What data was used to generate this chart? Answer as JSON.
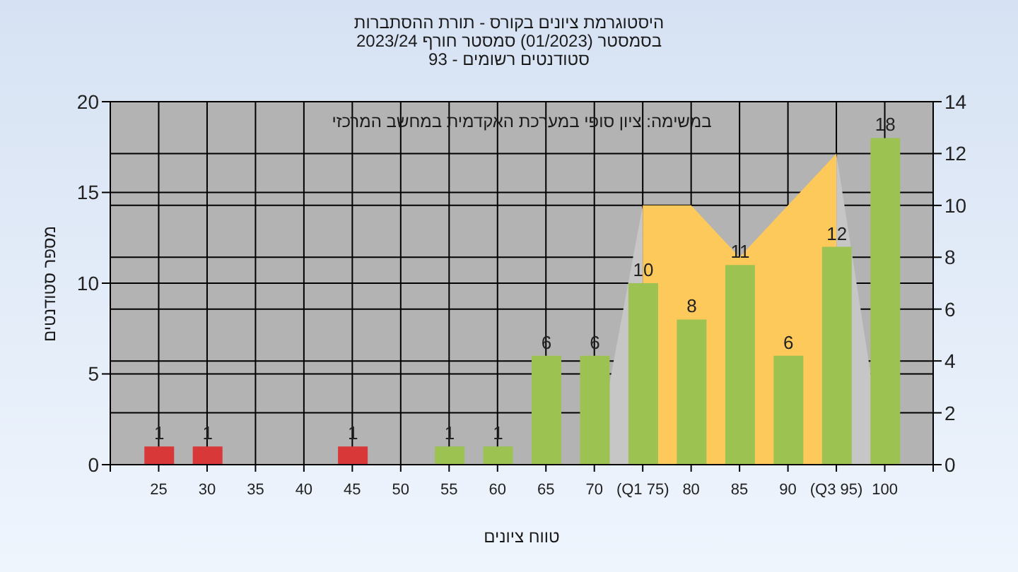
{
  "chart_data": {
    "type": "bar",
    "title": "היסטוגרמת ציונים בקורס - תורת ההסתברות",
    "subtitle": "בסמסטר (01/2023) סמסטר חורף 2023/24\nסטודנטים רשומים - 93",
    "xlabel": "טווח ציונים",
    "ylabel": "מספר סטודנטים",
    "annotations": [
      "במשימה: ציון סופי במערכת האקדמית במחשב המרכזי"
    ],
    "xlim": [
      20,
      105
    ],
    "xticks": [
      {
        "value": 20,
        "label": null
      },
      25,
      30,
      35,
      40,
      45,
      50,
      55,
      60,
      65,
      70,
      {
        "value": 75,
        "label": "(Q1 75)"
      },
      80,
      85,
      90,
      {
        "value": 95,
        "label": "(Q3 95)"
      },
      100,
      {
        "value": 105,
        "label": null
      }
    ],
    "ylim": [
      0,
      20
    ],
    "yticks": [
      0,
      5,
      10,
      15,
      20
    ],
    "y2lim": [
      0,
      14
    ],
    "y2ticks": [
      0,
      2,
      4,
      6,
      8,
      10,
      12,
      14
    ],
    "grid": true,
    "series": [
      {
        "type": "area",
        "axis": "y2",
        "color": "#c6c6c6",
        "x": [
          70,
          75,
          80,
          85,
          90,
          95,
          100
        ],
        "values": [
          0,
          10,
          null,
          null,
          null,
          12,
          0
        ]
      },
      {
        "type": "area",
        "axis": "y2",
        "color": "#fdc95b",
        "x": [
          75,
          80,
          85,
          90,
          95
        ],
        "values": [
          10,
          10,
          8,
          10,
          12
        ]
      },
      {
        "x": [
          25,
          30,
          45,
          55,
          60,
          65,
          70,
          75,
          80,
          85,
          90,
          95,
          100
        ],
        "values": [
          1,
          1,
          1,
          1,
          1,
          6,
          6,
          10,
          8,
          11,
          6,
          12,
          18
        ],
        "colors": [
          "#d83838",
          "#d83838",
          "#d83838",
          "#9cc252",
          "#9cc252",
          "#9cc252",
          "#9cc252",
          "#9cc252",
          "#9cc252",
          "#9cc252",
          "#9cc252",
          "#9cc252",
          "#9cc252"
        ],
        "value_labels": [
          "1",
          "1",
          "1",
          "1",
          "1",
          "6",
          "6",
          "10",
          "8",
          "11",
          "6",
          "12",
          "18"
        ]
      }
    ]
  }
}
